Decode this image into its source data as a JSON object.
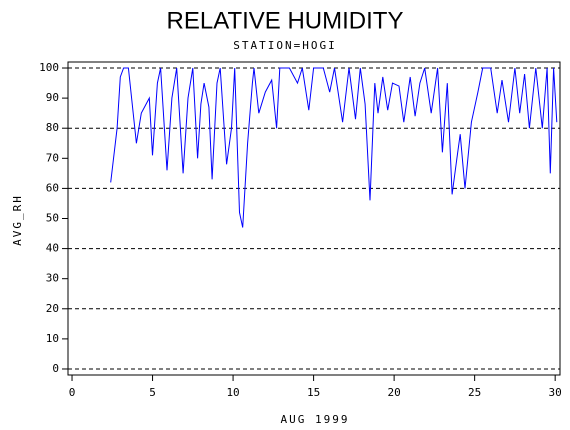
{
  "chart_data": {
    "type": "line",
    "title": "RELATIVE HUMIDITY",
    "subtitle": "STATION=HOGI",
    "x_label": "AUG 1999",
    "y_label": "AVG_RH",
    "x": [
      2.4,
      2.8,
      3.0,
      3.2,
      3.5,
      4.0,
      4.3,
      4.6,
      4.8,
      5.0,
      5.3,
      5.5,
      5.9,
      6.2,
      6.5,
      6.9,
      7.2,
      7.5,
      7.8,
      8.0,
      8.2,
      8.5,
      8.7,
      9.0,
      9.2,
      9.6,
      9.9,
      10.1,
      10.4,
      10.6,
      10.9,
      11.2,
      11.3,
      11.6,
      12.0,
      12.4,
      12.7,
      12.9,
      13.5,
      14.0,
      14.3,
      14.7,
      15.0,
      15.6,
      16.0,
      16.3,
      16.8,
      17.2,
      17.6,
      17.9,
      18.2,
      18.5,
      18.8,
      19.0,
      19.3,
      19.6,
      19.9,
      20.3,
      20.6,
      21.0,
      21.3,
      21.6,
      21.9,
      22.3,
      22.7,
      23.0,
      23.3,
      23.6,
      23.9,
      24.1,
      24.4,
      24.8,
      25.2,
      25.5,
      26.0,
      26.4,
      26.7,
      27.1,
      27.5,
      27.8,
      28.1,
      28.4,
      28.8,
      29.2,
      29.5,
      29.7,
      29.9,
      30.1
    ],
    "series": [
      {
        "name": "AVG_RH",
        "color": "#0000ff",
        "values": [
          62,
          80,
          97,
          100,
          100,
          75,
          85,
          88,
          90,
          71,
          95,
          100,
          66,
          90,
          100,
          65,
          90,
          100,
          70,
          88,
          95,
          87,
          63,
          95,
          100,
          68,
          80,
          100,
          52,
          47,
          75,
          95,
          100,
          85,
          92,
          96,
          80,
          100,
          100,
          95,
          100,
          86,
          100,
          100,
          92,
          100,
          82,
          100,
          83,
          100,
          88,
          56,
          95,
          85,
          97,
          86,
          95,
          94,
          82,
          97,
          84,
          95,
          100,
          85,
          100,
          72,
          95,
          58,
          70,
          78,
          60,
          82,
          92,
          100,
          100,
          85,
          96,
          82,
          100,
          85,
          98,
          80,
          100,
          80,
          100,
          65,
          100,
          82
        ]
      }
    ],
    "xlim": [
      -0.25,
      30.3
    ],
    "ylim": [
      -2,
      102
    ],
    "xticks": [
      0,
      5,
      10,
      15,
      20,
      25,
      30
    ],
    "yticks": [
      0,
      10,
      20,
      30,
      40,
      50,
      60,
      70,
      80,
      90,
      100
    ],
    "ygrid": [
      0,
      20,
      40,
      60,
      80,
      100
    ]
  }
}
